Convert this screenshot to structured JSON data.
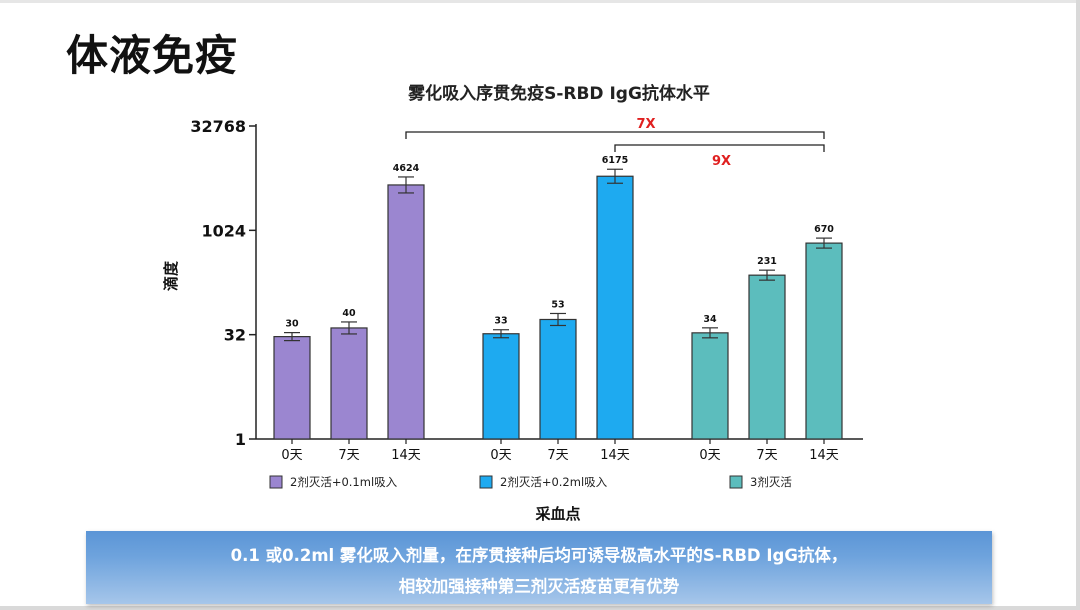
{
  "slide": {
    "title": "体液免疫",
    "conclusion_line1": "0.1 或0.2ml 雾化吸入剂量，在序贯接种后均可诱导极高水平的S-RBD IgG抗体，",
    "conclusion_line2": "相较加强接种第三剂灭活疫苗更有优势"
  },
  "chart_data": {
    "type": "bar",
    "title": "雾化吸入序贯免疫S-RBD IgG抗体水平",
    "ylabel": "滴度",
    "xlabel": "采血点",
    "yscale": "log2",
    "ylim": [
      1,
      32768
    ],
    "yticks": [
      1,
      32,
      1024,
      32768
    ],
    "ytick_labels": [
      "1",
      "32",
      "1024",
      "32768"
    ],
    "categories": [
      "0天",
      "7天",
      "14天"
    ],
    "series": [
      {
        "name": "2剂灭活+0.1ml吸入",
        "color": "#9b86d0",
        "values": [
          30,
          40,
          4624
        ],
        "labels": [
          "30",
          "40",
          "4624"
        ]
      },
      {
        "name": "2剂灭活+0.2ml吸入",
        "color": "#1eaaf0",
        "values": [
          33,
          53,
          6175
        ],
        "labels": [
          "33",
          "53",
          "6175"
        ]
      },
      {
        "name": "3剂灭活",
        "color": "#5cbdbd",
        "values": [
          34,
          231,
          670
        ],
        "labels": [
          "34",
          "231",
          "670"
        ]
      }
    ],
    "annotations": [
      {
        "text": "7X",
        "color": "#e02020"
      },
      {
        "text": "9X",
        "color": "#e02020"
      }
    ]
  }
}
